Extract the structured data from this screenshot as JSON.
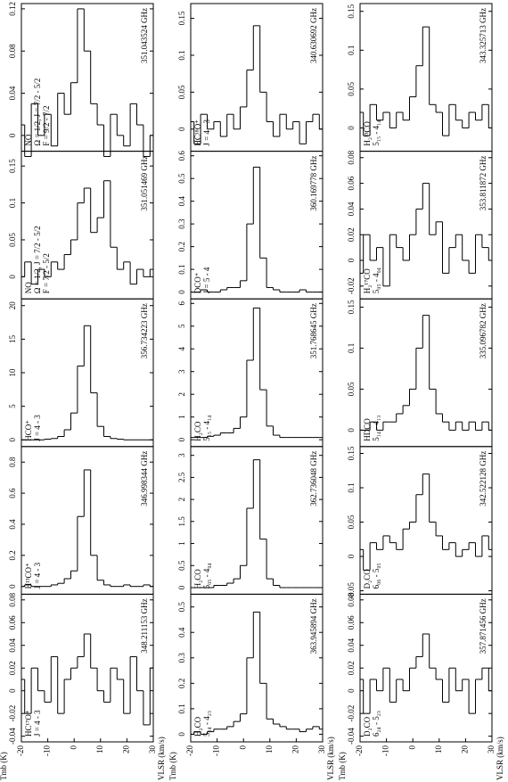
{
  "chart_data": [
    {
      "type": "line",
      "title": "351.043524 GHz",
      "labels": [
        "NO",
        "Ω = 1/2, J = 7/2 - 5/2",
        "F = 9/2 - 7/2"
      ],
      "color": "#000000",
      "x": [
        -20,
        -17.5,
        -15,
        -12.5,
        -10,
        -7.5,
        -5,
        -2.5,
        0,
        2.5,
        5,
        7.5,
        10,
        12.5,
        15,
        17.5,
        20,
        22.5,
        25,
        27.5,
        30
      ],
      "values": [
        0.01,
        -0.02,
        0.03,
        0.0,
        0.02,
        -0.01,
        0.04,
        0.02,
        0.05,
        0.12,
        0.08,
        0.03,
        0.01,
        -0.02,
        0.02,
        0.0,
        -0.01,
        0.03,
        0.01,
        -0.02,
        0.0
      ],
      "xlim": [
        -20,
        30
      ],
      "ylim": [
        -0.015,
        0.125
      ],
      "yticks": [
        0,
        0.04,
        0.08,
        0.12
      ]
    },
    {
      "type": "line",
      "title": "351.051469 GHz",
      "labels": [
        "NO",
        "Ω = 1/2, J = 7/2 - 5/2",
        "F = 7/2 - 5/2"
      ],
      "color": "#000000",
      "x": [
        -20,
        -17.5,
        -15,
        -12.5,
        -10,
        -7.5,
        -5,
        -2.5,
        0,
        2.5,
        5,
        7.5,
        10,
        12.5,
        15,
        17.5,
        20,
        22.5,
        25,
        27.5,
        30
      ],
      "values": [
        0.0,
        0.02,
        -0.01,
        0.01,
        0.0,
        0.02,
        0.01,
        0.03,
        0.05,
        0.1,
        0.12,
        0.06,
        0.08,
        0.13,
        0.04,
        0.01,
        0.02,
        -0.01,
        0.01,
        0.0,
        0.01
      ],
      "xlim": [
        -20,
        30
      ],
      "ylim": [
        -0.03,
        0.17
      ],
      "yticks": [
        0,
        0.05,
        0.1,
        0.15
      ]
    },
    {
      "type": "line",
      "title": "356.734223 GHz",
      "labels": [
        "HCO⁺",
        "J = 4 - 3"
      ],
      "color": "#000000",
      "x": [
        -20,
        -17.5,
        -15,
        -12.5,
        -10,
        -7.5,
        -5,
        -2.5,
        0,
        2.5,
        5,
        7.5,
        10,
        12.5,
        15,
        17.5,
        20,
        22.5,
        25,
        27.5,
        30
      ],
      "values": [
        0,
        0,
        0,
        0,
        0.1,
        0.2,
        0.5,
        1.5,
        4,
        11,
        17,
        7,
        2,
        0.5,
        0.2,
        0.1,
        0,
        0,
        0,
        0,
        0
      ],
      "xlim": [
        -20,
        30
      ],
      "ylim": [
        -1,
        21
      ],
      "yticks": [
        0,
        5,
        10,
        15,
        20
      ]
    },
    {
      "type": "line",
      "title": "346.998344 GHz",
      "labels": [
        "H¹³CO⁺",
        "J = 4 - 3"
      ],
      "color": "#000000",
      "x": [
        -20,
        -17.5,
        -15,
        -12.5,
        -10,
        -7.5,
        -5,
        -2.5,
        0,
        2.5,
        5,
        7.5,
        10,
        12.5,
        15,
        17.5,
        20,
        22.5,
        25,
        27.5,
        30
      ],
      "values": [
        0,
        0.01,
        0,
        0,
        0,
        0.01,
        0.02,
        0.05,
        0.1,
        0.45,
        0.75,
        0.2,
        0.04,
        0.01,
        0,
        0,
        0.01,
        0,
        0,
        0.01,
        0
      ],
      "xlim": [
        -20,
        30
      ],
      "ylim": [
        -0.05,
        0.9
      ],
      "yticks": [
        0,
        0.2,
        0.4,
        0.6,
        0.8
      ]
    },
    {
      "type": "line",
      "title": "348.211153 GHz",
      "labels": [
        "HC¹⁷O⁺",
        "J = 4 - 3"
      ],
      "color": "#000000",
      "x": [
        -20,
        -17.5,
        -15,
        -12.5,
        -10,
        -7.5,
        -5,
        -2.5,
        0,
        2.5,
        5,
        7.5,
        10,
        12.5,
        15,
        17.5,
        20,
        22.5,
        25,
        27.5,
        30
      ],
      "values": [
        0.01,
        -0.02,
        0.02,
        0,
        -0.01,
        0.03,
        -0.02,
        0.01,
        0.02,
        0.03,
        0.05,
        0.02,
        0,
        -0.01,
        0.02,
        0.01,
        -0.02,
        0.03,
        0,
        -0.03,
        0.02
      ],
      "xlim": [
        -20,
        30
      ],
      "ylim": [
        -0.045,
        0.085
      ],
      "yticks": [
        -0.04,
        -0.02,
        0,
        0.02,
        0.04,
        0.06,
        0.08
      ],
      "xticks": [
        -20,
        -10,
        0,
        10,
        20,
        30
      ],
      "xlabel": "VLSR (km/s)",
      "ylabel": "Tmb (K)"
    },
    {
      "type": "line",
      "title": "340.630692 GHz",
      "labels": [
        "HC¹⁸O⁺",
        "J = 4 - 3"
      ],
      "color": "#000000",
      "x": [
        -20,
        -17.5,
        -15,
        -12.5,
        -10,
        -7.5,
        -5,
        -2.5,
        0,
        2.5,
        5,
        7.5,
        10,
        12.5,
        15,
        17.5,
        20,
        22.5,
        25,
        27.5,
        30
      ],
      "values": [
        0.01,
        -0.02,
        0.02,
        0.0,
        0.01,
        -0.01,
        0.02,
        0.0,
        0.03,
        0.08,
        0.14,
        0.05,
        0.01,
        -0.01,
        0.02,
        0.0,
        0.01,
        -0.02,
        0.01,
        0.02,
        0
      ],
      "xlim": [
        -20,
        30
      ],
      "ylim": [
        -0.03,
        0.17
      ],
      "yticks": [
        0,
        0.05,
        0.1,
        0.15
      ]
    },
    {
      "type": "line",
      "title": "360.169778 GHz",
      "labels": [
        "DCO⁺",
        "J = 5 - 4"
      ],
      "color": "#000000",
      "x": [
        -20,
        -17.5,
        -15,
        -12.5,
        -10,
        -7.5,
        -5,
        -2.5,
        0,
        2.5,
        5,
        7.5,
        10,
        12.5,
        15,
        17.5,
        20,
        22.5,
        25,
        27.5,
        30
      ],
      "values": [
        0,
        0,
        0.01,
        0,
        0,
        0.01,
        0.02,
        0.02,
        0.05,
        0.3,
        0.55,
        0.15,
        0.02,
        0.01,
        0,
        0,
        0,
        0.01,
        0,
        0,
        0
      ],
      "xlim": [
        -20,
        30
      ],
      "ylim": [
        -0.03,
        0.62
      ],
      "yticks": [
        0,
        0.1,
        0.2,
        0.3,
        0.4,
        0.5,
        0.6
      ]
    },
    {
      "type": "line",
      "title": "351.768645 GHz",
      "labels": [
        "H₂CO",
        "5₁₅ - 4₁₄"
      ],
      "color": "#000000",
      "x": [
        -20,
        -17.5,
        -15,
        -12.5,
        -10,
        -7.5,
        -5,
        -2.5,
        0,
        2.5,
        5,
        7.5,
        10,
        12.5,
        15,
        17.5,
        20,
        22.5,
        25,
        27.5,
        30
      ],
      "values": [
        0.1,
        0.1,
        0.1,
        0.15,
        0.2,
        0.3,
        0.3,
        0.5,
        1,
        3.5,
        5.8,
        2.2,
        0.6,
        0.2,
        0.1,
        0.1,
        0.1,
        0.1,
        0.1,
        0.1,
        0.1
      ],
      "xlim": [
        -20,
        30
      ],
      "ylim": [
        -0.3,
        6.2
      ],
      "yticks": [
        0,
        1,
        2,
        3,
        4,
        5,
        6
      ]
    },
    {
      "type": "line",
      "title": "362.736048 GHz",
      "labels": [
        "H₂CO",
        "5₀₅ - 4₀₄"
      ],
      "color": "#000000",
      "x": [
        -20,
        -17.5,
        -15,
        -12.5,
        -10,
        -7.5,
        -5,
        -2.5,
        0,
        2.5,
        5,
        7.5,
        10,
        12.5,
        15,
        17.5,
        20,
        22.5,
        25,
        27.5,
        30
      ],
      "values": [
        0,
        0,
        0,
        0,
        0.05,
        0.05,
        0.1,
        0.2,
        0.5,
        1.8,
        2.9,
        1.1,
        0.2,
        0.05,
        0,
        0,
        0,
        0,
        0,
        0,
        0
      ],
      "xlim": [
        -20,
        30
      ],
      "ylim": [
        -0.15,
        3.2
      ],
      "yticks": [
        0,
        0.5,
        1,
        1.5,
        2,
        2.5,
        3
      ]
    },
    {
      "type": "line",
      "title": "363.945894 GHz",
      "labels": [
        "H₂CO",
        "5₂₄ - 4₂₃"
      ],
      "color": "#000000",
      "x": [
        -20,
        -17.5,
        -15,
        -12.5,
        -10,
        -7.5,
        -5,
        -2.5,
        0,
        2.5,
        5,
        7.5,
        10,
        12.5,
        15,
        17.5,
        20,
        22.5,
        25,
        27.5,
        30
      ],
      "values": [
        0,
        0.01,
        0,
        0.01,
        0.02,
        0.02,
        0.03,
        0.05,
        0.08,
        0.3,
        0.48,
        0.2,
        0.06,
        0.04,
        0.03,
        0.02,
        0.02,
        0.01,
        0.02,
        0.03,
        0.02
      ],
      "xlim": [
        -20,
        30
      ],
      "ylim": [
        -0.03,
        0.55
      ],
      "yticks": [
        0,
        0.1,
        0.2,
        0.3,
        0.4,
        0.5
      ],
      "xticks": [
        -20,
        -10,
        0,
        10,
        20,
        30
      ],
      "xlabel": "VLSR (km/s)",
      "ylabel": "Tmb (K)"
    },
    {
      "type": "line",
      "title": "343.325713 GHz",
      "labels": [
        "H₂¹³CO",
        "5₁₅ - 4₁₄"
      ],
      "color": "#000000",
      "x": [
        -20,
        -17.5,
        -15,
        -12.5,
        -10,
        -7.5,
        -5,
        -2.5,
        0,
        2.5,
        5,
        7.5,
        10,
        12.5,
        15,
        17.5,
        20,
        22.5,
        25,
        27.5,
        30
      ],
      "values": [
        0.02,
        -0.01,
        0.03,
        0.01,
        0.02,
        0.0,
        0.02,
        0.01,
        0.04,
        0.08,
        0.13,
        0.03,
        0.02,
        -0.01,
        0.03,
        0.01,
        0.0,
        0.02,
        0.01,
        0.03,
        0.0
      ],
      "xlim": [
        -20,
        30
      ],
      "ylim": [
        -0.03,
        0.16
      ],
      "yticks": [
        0,
        0.05,
        0.1,
        0.15
      ]
    },
    {
      "type": "line",
      "title": "353.811872 GHz",
      "labels": [
        "H₂¹⁷CO",
        "5₀₅ - 4₀₄"
      ],
      "color": "#000000",
      "x": [
        -20,
        -17.5,
        -15,
        -12.5,
        -10,
        -7.5,
        -5,
        -2.5,
        0,
        2.5,
        5,
        7.5,
        10,
        12.5,
        15,
        17.5,
        20,
        22.5,
        25,
        27.5,
        30
      ],
      "values": [
        -0.01,
        0.02,
        0,
        0.01,
        -0.02,
        0.02,
        0.01,
        0,
        0.02,
        0.04,
        0.06,
        0.02,
        0.03,
        -0.01,
        0.01,
        0.02,
        0,
        -0.01,
        0.02,
        0.01,
        0
      ],
      "xlim": [
        -20,
        30
      ],
      "ylim": [
        -0.03,
        0.085
      ],
      "yticks": [
        -0.02,
        0,
        0.02,
        0.04,
        0.06,
        0.08
      ]
    },
    {
      "type": "line",
      "title": "335.096782 GHz",
      "labels": [
        "HDCO",
        "5₁₄ - 4₁₃"
      ],
      "color": "#000000",
      "x": [
        -20,
        -17.5,
        -15,
        -12.5,
        -10,
        -7.5,
        -5,
        -2.5,
        0,
        2.5,
        5,
        7.5,
        10,
        12.5,
        15,
        17.5,
        20,
        22.5,
        25,
        27.5,
        30
      ],
      "values": [
        0,
        0,
        0.01,
        0,
        0.01,
        0.01,
        0.02,
        0.03,
        0.05,
        0.1,
        0.14,
        0.05,
        0.02,
        0.01,
        0,
        0.01,
        0,
        0.01,
        0,
        0.01,
        0
      ],
      "xlim": [
        -20,
        30
      ],
      "ylim": [
        -0.02,
        0.16
      ],
      "yticks": [
        0,
        0.05,
        0.1,
        0.15
      ]
    },
    {
      "type": "line",
      "title": "342.522128 GHz",
      "labels": [
        "D₂CO",
        "6₀₆ - 5₀₅"
      ],
      "color": "#000000",
      "x": [
        -20,
        -17.5,
        -15,
        -12.5,
        -10,
        -7.5,
        -5,
        -2.5,
        0,
        2.5,
        5,
        7.5,
        10,
        12.5,
        15,
        17.5,
        20,
        22.5,
        25,
        27.5,
        30
      ],
      "values": [
        0.01,
        -0.02,
        0.02,
        0.01,
        0.03,
        0.02,
        0.01,
        0.04,
        0.05,
        0.09,
        0.12,
        0.05,
        0.03,
        0.01,
        0.02,
        0.0,
        0.01,
        0.02,
        0.0,
        0.03,
        0.01
      ],
      "xlim": [
        -20,
        30
      ],
      "ylim": [
        -0.055,
        0.16
      ],
      "yticks": [
        -0.05,
        0,
        0.05,
        0.1,
        0.15
      ]
    },
    {
      "type": "line",
      "title": "357.871456 GHz",
      "labels": [
        "D₂CO",
        "6₂₄ - 5₂₃"
      ],
      "color": "#000000",
      "x": [
        -20,
        -17.5,
        -15,
        -12.5,
        -10,
        -7.5,
        -5,
        -2.5,
        0,
        2.5,
        5,
        7.5,
        10,
        12.5,
        15,
        17.5,
        20,
        22.5,
        25,
        27.5,
        30
      ],
      "values": [
        0.01,
        -0.02,
        0.01,
        0,
        0.02,
        -0.01,
        0.01,
        0,
        0.02,
        0.03,
        0.05,
        0.02,
        0.01,
        -0.01,
        0.02,
        0,
        0.01,
        -0.02,
        0.01,
        0.02,
        0
      ],
      "xlim": [
        -20,
        30
      ],
      "ylim": [
        -0.045,
        0.085
      ],
      "yticks": [
        -0.04,
        -0.02,
        0,
        0.02,
        0.04,
        0.06,
        0.08
      ],
      "xticks": [
        -20,
        -10,
        0,
        10,
        20,
        30
      ],
      "xlabel": "VLSR (km/s)",
      "ylabel": "Tmb (K)"
    }
  ]
}
